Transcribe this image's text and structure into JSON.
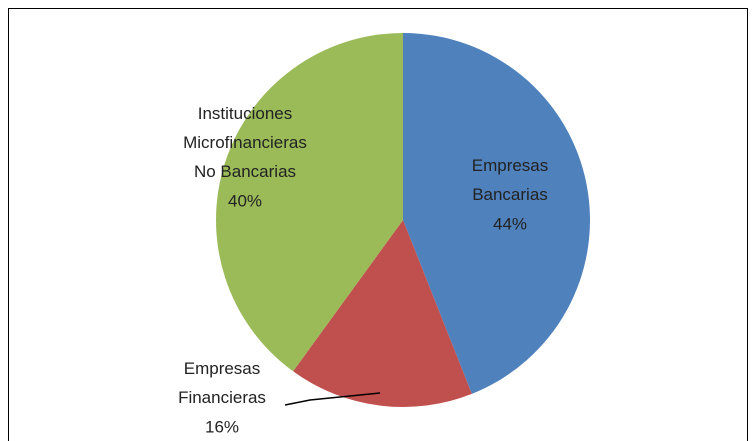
{
  "chart_data": {
    "type": "pie",
    "categories": [
      "Empresas\nBancarias",
      "Empresas\nFinancieras",
      "Instituciones\nMicrofinancieras\nNo Bancarias"
    ],
    "values": [
      44,
      16,
      40
    ],
    "value_labels": [
      "44%",
      "16%",
      "40%"
    ],
    "colors": [
      "#4f81bd",
      "#c0504d",
      "#9bbb59"
    ]
  }
}
